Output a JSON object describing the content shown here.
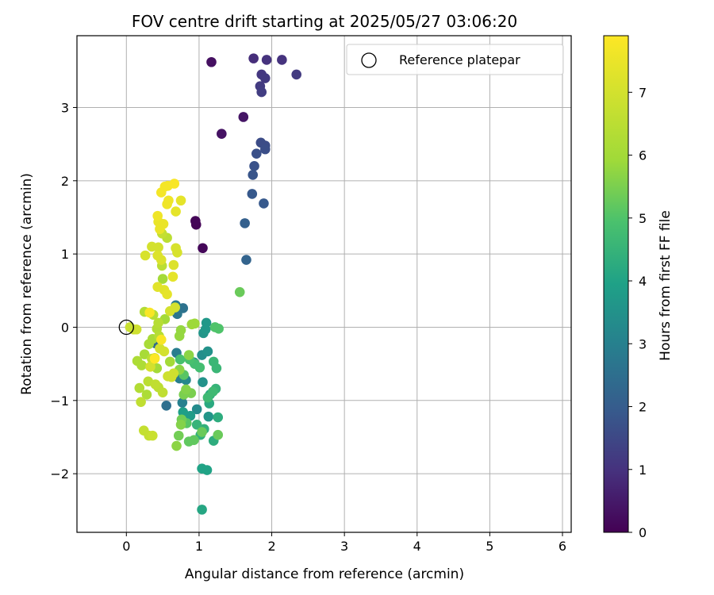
{
  "chart_data": {
    "type": "scatter",
    "title": "FOV centre drift starting at 2025/05/27 03:06:20",
    "xlabel": "Angular distance from reference (arcmin)",
    "ylabel": "Rotation from reference (arcmin)",
    "xlim": [
      -0.68,
      6.12
    ],
    "ylim": [
      -2.8,
      3.98
    ],
    "xticks": [
      0,
      1,
      2,
      3,
      4,
      5,
      6
    ],
    "yticks": [
      -2,
      -1,
      0,
      1,
      2,
      3
    ],
    "grid": true,
    "legend": {
      "placement": "top-right",
      "label": "Reference platepar"
    },
    "reference_point": {
      "x": 0.0,
      "y": 0.0
    },
    "colorbar": {
      "label": "Hours from first FF file",
      "range": [
        0,
        7.9
      ],
      "ticks": [
        0,
        1,
        2,
        3,
        4,
        5,
        6,
        7
      ],
      "colormap": "viridis"
    },
    "points": [
      {
        "x": 0.96,
        "y": 1.4,
        "h": 0.05
      },
      {
        "x": 0.95,
        "y": 1.45,
        "h": 0.08
      },
      {
        "x": 1.05,
        "y": 1.08,
        "h": 0.12
      },
      {
        "x": 1.17,
        "y": 3.62,
        "h": 0.3
      },
      {
        "x": 1.31,
        "y": 2.64,
        "h": 0.35
      },
      {
        "x": 1.61,
        "y": 2.87,
        "h": 0.4
      },
      {
        "x": 1.75,
        "y": 3.67,
        "h": 0.9
      },
      {
        "x": 1.93,
        "y": 3.65,
        "h": 1.0
      },
      {
        "x": 2.14,
        "y": 3.65,
        "h": 1.0
      },
      {
        "x": 1.86,
        "y": 3.45,
        "h": 1.1
      },
      {
        "x": 1.91,
        "y": 3.4,
        "h": 1.15
      },
      {
        "x": 2.34,
        "y": 3.45,
        "h": 1.2
      },
      {
        "x": 1.84,
        "y": 3.29,
        "h": 1.2
      },
      {
        "x": 1.86,
        "y": 3.21,
        "h": 1.25
      },
      {
        "x": 1.85,
        "y": 2.52,
        "h": 1.6
      },
      {
        "x": 1.91,
        "y": 2.48,
        "h": 1.6
      },
      {
        "x": 1.91,
        "y": 2.43,
        "h": 1.65
      },
      {
        "x": 1.79,
        "y": 2.37,
        "h": 1.7
      },
      {
        "x": 1.76,
        "y": 2.2,
        "h": 1.75
      },
      {
        "x": 1.74,
        "y": 2.08,
        "h": 1.8
      },
      {
        "x": 1.73,
        "y": 1.82,
        "h": 1.9
      },
      {
        "x": 1.89,
        "y": 1.69,
        "h": 1.9
      },
      {
        "x": 1.63,
        "y": 1.42,
        "h": 2.1
      },
      {
        "x": 1.65,
        "y": 0.92,
        "h": 2.2
      },
      {
        "x": 0.4,
        "y": -0.22,
        "h": 2.4
      },
      {
        "x": 0.55,
        "y": -1.07,
        "h": 2.5
      },
      {
        "x": 0.78,
        "y": 0.26,
        "h": 2.6
      },
      {
        "x": 0.7,
        "y": 0.18,
        "h": 2.7
      },
      {
        "x": 0.68,
        "y": 0.3,
        "h": 2.8
      },
      {
        "x": 0.69,
        "y": -0.35,
        "h": 2.9
      },
      {
        "x": 0.73,
        "y": -0.7,
        "h": 2.9
      },
      {
        "x": 0.77,
        "y": -1.03,
        "h": 3.0
      },
      {
        "x": 0.6,
        "y": -0.67,
        "h": 3.0
      },
      {
        "x": 0.82,
        "y": -0.72,
        "h": 3.2
      },
      {
        "x": 0.93,
        "y": -0.48,
        "h": 3.3
      },
      {
        "x": 0.97,
        "y": -1.12,
        "h": 3.3
      },
      {
        "x": 1.04,
        "y": -0.38,
        "h": 3.4
      },
      {
        "x": 1.12,
        "y": -0.33,
        "h": 3.5
      },
      {
        "x": 1.05,
        "y": -0.75,
        "h": 3.5
      },
      {
        "x": 1.13,
        "y": -1.22,
        "h": 3.6
      },
      {
        "x": 1.06,
        "y": -0.08,
        "h": 3.6
      },
      {
        "x": 1.09,
        "y": -0.03,
        "h": 3.7
      },
      {
        "x": 1.1,
        "y": 0.06,
        "h": 3.7
      },
      {
        "x": 0.88,
        "y": -1.21,
        "h": 3.8
      },
      {
        "x": 0.78,
        "y": -1.16,
        "h": 3.9
      },
      {
        "x": 1.04,
        "y": -1.93,
        "h": 4.0
      },
      {
        "x": 1.11,
        "y": -1.95,
        "h": 4.0
      },
      {
        "x": 1.04,
        "y": -2.49,
        "h": 4.1
      },
      {
        "x": 1.15,
        "y": -0.92,
        "h": 4.2
      },
      {
        "x": 1.14,
        "y": -1.04,
        "h": 4.2
      },
      {
        "x": 1.26,
        "y": -1.23,
        "h": 4.3
      },
      {
        "x": 1.2,
        "y": -1.55,
        "h": 4.3
      },
      {
        "x": 1.07,
        "y": -1.39,
        "h": 4.4
      },
      {
        "x": 1.02,
        "y": -1.47,
        "h": 4.4
      },
      {
        "x": 0.97,
        "y": -1.33,
        "h": 4.5
      },
      {
        "x": 1.23,
        "y": -0.84,
        "h": 4.5
      },
      {
        "x": 1.2,
        "y": -0.47,
        "h": 4.6
      },
      {
        "x": 1.24,
        "y": -0.56,
        "h": 4.6
      },
      {
        "x": 1.19,
        "y": -0.88,
        "h": 4.7
      },
      {
        "x": 1.12,
        "y": -0.96,
        "h": 4.7
      },
      {
        "x": 1.01,
        "y": -0.55,
        "h": 4.8
      },
      {
        "x": 0.94,
        "y": -0.5,
        "h": 4.8
      },
      {
        "x": 0.87,
        "y": -0.44,
        "h": 4.9
      },
      {
        "x": 0.74,
        "y": -0.44,
        "h": 4.9
      },
      {
        "x": 1.22,
        "y": 0.0,
        "h": 5.0
      },
      {
        "x": 1.27,
        "y": -0.02,
        "h": 5.0
      },
      {
        "x": 0.79,
        "y": -0.65,
        "h": 5.1
      },
      {
        "x": 0.83,
        "y": -1.31,
        "h": 5.1
      },
      {
        "x": 0.86,
        "y": -1.56,
        "h": 5.2
      },
      {
        "x": 0.93,
        "y": -1.54,
        "h": 5.2
      },
      {
        "x": 1.26,
        "y": -1.47,
        "h": 5.3
      },
      {
        "x": 1.04,
        "y": -1.43,
        "h": 5.3
      },
      {
        "x": 1.56,
        "y": 0.48,
        "h": 5.3
      },
      {
        "x": 0.72,
        "y": -1.48,
        "h": 5.4
      },
      {
        "x": 0.76,
        "y": -1.26,
        "h": 5.4
      },
      {
        "x": 0.89,
        "y": -0.9,
        "h": 5.5
      },
      {
        "x": 0.79,
        "y": -0.92,
        "h": 5.5
      },
      {
        "x": 0.82,
        "y": -0.85,
        "h": 5.6
      },
      {
        "x": 0.75,
        "y": -1.33,
        "h": 5.6
      },
      {
        "x": 0.69,
        "y": -1.62,
        "h": 5.7
      },
      {
        "x": 0.86,
        "y": -0.38,
        "h": 5.7
      },
      {
        "x": 0.73,
        "y": -0.58,
        "h": 5.7
      },
      {
        "x": 0.75,
        "y": -0.04,
        "h": 5.8
      },
      {
        "x": 0.73,
        "y": -0.12,
        "h": 5.8
      },
      {
        "x": 0.9,
        "y": 0.04,
        "h": 5.9
      },
      {
        "x": 0.94,
        "y": 0.05,
        "h": 5.9
      },
      {
        "x": 0.6,
        "y": -0.47,
        "h": 6.0
      },
      {
        "x": 0.53,
        "y": 0.11,
        "h": 6.0
      },
      {
        "x": 0.42,
        "y": -0.56,
        "h": 6.0
      },
      {
        "x": 0.36,
        "y": -0.16,
        "h": 6.1
      },
      {
        "x": 0.31,
        "y": -0.23,
        "h": 6.1
      },
      {
        "x": 0.25,
        "y": -0.37,
        "h": 6.1
      },
      {
        "x": 0.21,
        "y": -0.52,
        "h": 6.2
      },
      {
        "x": 0.15,
        "y": -0.46,
        "h": 6.2
      },
      {
        "x": 0.28,
        "y": -0.92,
        "h": 6.2
      },
      {
        "x": 0.18,
        "y": -0.83,
        "h": 6.3
      },
      {
        "x": 0.25,
        "y": 0.21,
        "h": 6.3
      },
      {
        "x": 0.42,
        "y": -0.02,
        "h": 6.3
      },
      {
        "x": 0.44,
        "y": 0.06,
        "h": 6.4
      },
      {
        "x": 0.37,
        "y": 0.17,
        "h": 6.4
      },
      {
        "x": 0.45,
        "y": -0.12,
        "h": 6.4
      },
      {
        "x": 0.3,
        "y": -0.74,
        "h": 6.5
      },
      {
        "x": 0.35,
        "y": -0.43,
        "h": 6.5
      },
      {
        "x": 0.44,
        "y": -0.82,
        "h": 6.5
      },
      {
        "x": 0.5,
        "y": -0.89,
        "h": 6.6
      },
      {
        "x": 0.4,
        "y": -0.78,
        "h": 6.6
      },
      {
        "x": 0.2,
        "y": -1.02,
        "h": 6.6
      },
      {
        "x": 0.24,
        "y": -1.41,
        "h": 6.7
      },
      {
        "x": 0.31,
        "y": -1.48,
        "h": 6.7
      },
      {
        "x": 0.36,
        "y": -1.48,
        "h": 6.8
      },
      {
        "x": 0.1,
        "y": -0.03,
        "h": 6.8
      },
      {
        "x": 0.05,
        "y": 0.0,
        "h": 6.8
      },
      {
        "x": 0.14,
        "y": -0.03,
        "h": 6.9
      },
      {
        "x": 0.57,
        "y": -0.67,
        "h": 6.9
      },
      {
        "x": 0.65,
        "y": -0.63,
        "h": 6.9
      },
      {
        "x": 0.62,
        "y": -0.68,
        "h": 6.9
      },
      {
        "x": 0.46,
        "y": -0.29,
        "h": 7.0
      },
      {
        "x": 0.52,
        "y": -0.33,
        "h": 7.0
      },
      {
        "x": 0.39,
        "y": -0.42,
        "h": 7.0
      },
      {
        "x": 0.33,
        "y": -0.54,
        "h": 7.0
      },
      {
        "x": 0.5,
        "y": 0.66,
        "h": 6.0
      },
      {
        "x": 0.49,
        "y": 0.84,
        "h": 6.5
      },
      {
        "x": 0.56,
        "y": 1.22,
        "h": 6.5
      },
      {
        "x": 0.49,
        "y": 1.28,
        "h": 6.7
      },
      {
        "x": 0.6,
        "y": 0.22,
        "h": 7.0
      },
      {
        "x": 0.67,
        "y": 0.27,
        "h": 7.0
      },
      {
        "x": 0.35,
        "y": 1.1,
        "h": 7.0
      },
      {
        "x": 0.44,
        "y": 1.09,
        "h": 7.0
      },
      {
        "x": 0.68,
        "y": 1.08,
        "h": 7.1
      },
      {
        "x": 0.7,
        "y": 1.02,
        "h": 7.1
      },
      {
        "x": 0.26,
        "y": 0.98,
        "h": 7.1
      },
      {
        "x": 0.43,
        "y": 0.98,
        "h": 7.2
      },
      {
        "x": 0.48,
        "y": 0.92,
        "h": 7.2
      },
      {
        "x": 0.65,
        "y": 0.85,
        "h": 7.2
      },
      {
        "x": 0.52,
        "y": 0.51,
        "h": 7.3
      },
      {
        "x": 0.43,
        "y": 0.55,
        "h": 7.3
      },
      {
        "x": 0.56,
        "y": 0.45,
        "h": 7.4
      },
      {
        "x": 0.64,
        "y": 0.69,
        "h": 7.4
      },
      {
        "x": 0.68,
        "y": 1.58,
        "h": 7.4
      },
      {
        "x": 0.75,
        "y": 1.73,
        "h": 7.4
      },
      {
        "x": 0.44,
        "y": 1.44,
        "h": 7.5
      },
      {
        "x": 0.51,
        "y": 1.41,
        "h": 7.5
      },
      {
        "x": 0.46,
        "y": 1.34,
        "h": 7.5
      },
      {
        "x": 0.43,
        "y": 1.52,
        "h": 7.6
      },
      {
        "x": 0.56,
        "y": 1.68,
        "h": 7.6
      },
      {
        "x": 0.58,
        "y": 1.73,
        "h": 7.6
      },
      {
        "x": 0.48,
        "y": 1.84,
        "h": 7.7
      },
      {
        "x": 0.53,
        "y": 1.92,
        "h": 7.7
      },
      {
        "x": 0.57,
        "y": 1.93,
        "h": 7.7
      },
      {
        "x": 0.66,
        "y": 1.96,
        "h": 7.8
      },
      {
        "x": 0.32,
        "y": 0.2,
        "h": 7.8
      },
      {
        "x": 0.48,
        "y": -0.17,
        "h": 7.8
      },
      {
        "x": 0.39,
        "y": -0.43,
        "h": 7.9
      }
    ]
  }
}
